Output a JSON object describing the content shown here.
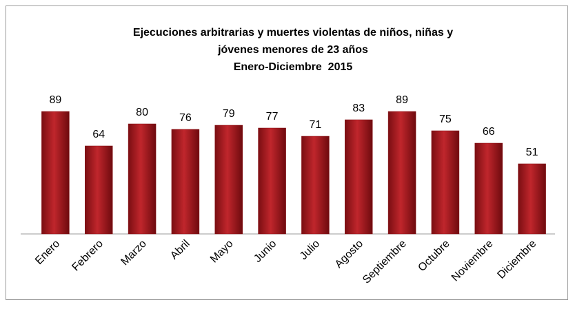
{
  "chart_data": {
    "type": "bar",
    "title": "Ejecuciones arbitrarias y muertes violentas de niños, niñas y jóvenes menores de 23 años",
    "subtitle": "Enero-Diciembre  2015",
    "categories": [
      "Enero",
      "Febrero",
      "Marzo",
      "Abril",
      "Mayo",
      "Junio",
      "Julio",
      "Agosto",
      "Septiembre",
      "Octubre",
      "Noviembre",
      "Diciembre"
    ],
    "values": [
      89,
      64,
      80,
      76,
      79,
      77,
      71,
      83,
      89,
      75,
      66,
      51
    ],
    "color": "#c0262c",
    "ylim": [
      0,
      100
    ]
  }
}
